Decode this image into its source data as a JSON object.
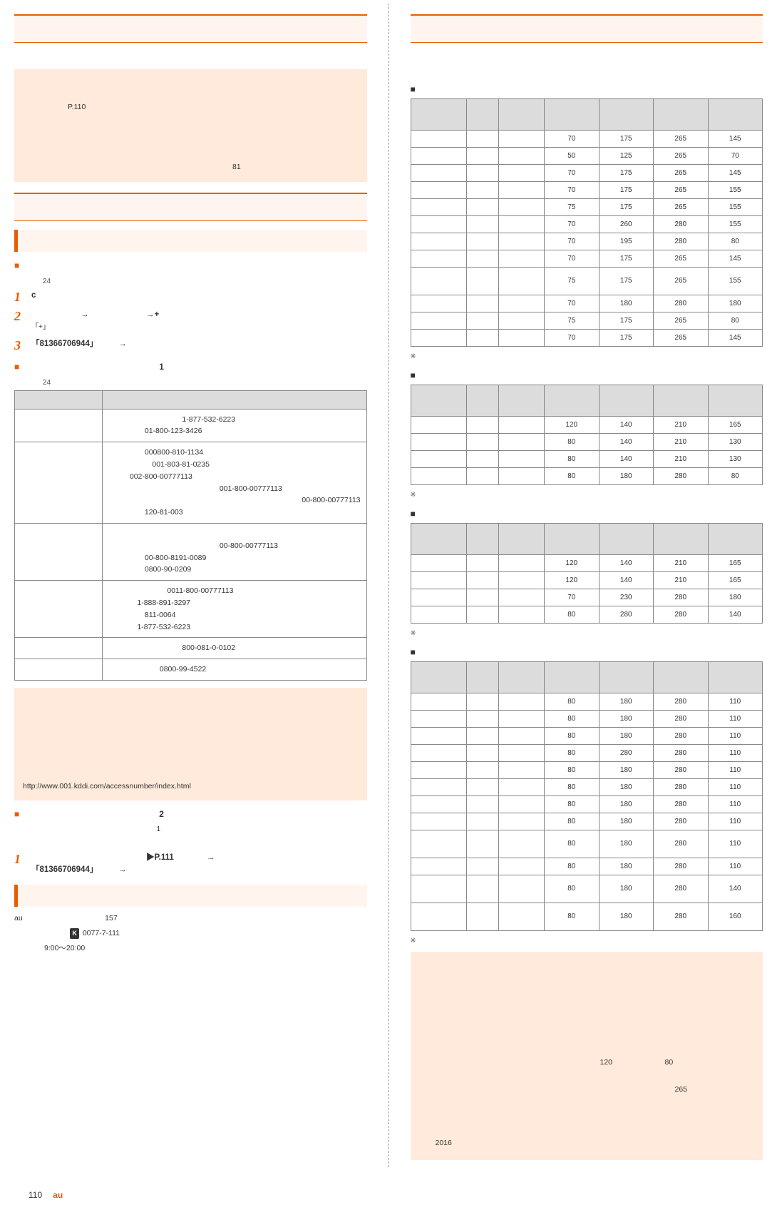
{
  "left": {
    "sec1": {
      "title": "　　　　　　　　　　",
      "desc": "　　　　　　　　　　　　　　　　　　　　　　　　　　　　　　　　　",
      "box": "　　　　　　　　　　　　　　　　　　　　　　　　　　　　　　　　　　　　　\n　　　　　　　　　　　　　　　　　　　　　　\n　　　　　　P.110　　　　　　　　　\n\n　　　　　　　　　　　　　　　　　　　　　　　　　　　　　　　　　　　　　\n　　　　　　　　　　　　　　　　　　　　　　　　　　　　\n　　　　　　　　　　　　　　　　　　　　　　　　　　　　　　　　　　　　　\n　　　　　　　　　　　　　　　　　　　　　　　　　　　　81　　　　　　　"
    },
    "sec2": {
      "title": "　　　　　　　　",
      "sub1": "　　　　　　　　　　　　",
      "h1": "　　　　　　　　　　　　　　　　　　　　　　　",
      "h1note": "　　　　24　　",
      "step1c": "c",
      "step2": "　　　　　　→　　　　　　　→+　　　",
      "step2note": "「+」　　　　　　　　　　　　　　　　　　　　　　　　　　　　　　　　　　　　",
      "step3": "「81366706944」　　　→　　　",
      "h2": "　　　　　　　　　　　　　　　　1　　　　　　　　　　　",
      "h2note": "　　　　24　　",
      "tbl1": {
        "head": [
          "　　　　　",
          "　　　　　　　　　　"
        ],
        "rows": [
          [
            "　　　　　　",
            "　　　　　　　　　　1-877-532-6223\n　　　　　01-800-123-3426"
          ],
          [
            "　　　",
            "　　　　　000800-810-1134\n　　　　　　001-803-81-0235\n　　　002-800-00777113\n　　　　　　　　　　　　　　　001-800-00777113\n　　　　　　　　　　　　　　　　　　　　　　　　　　00-800-00777113\n　　　　　120-81-003"
          ],
          [
            "　　　　　",
            "　　　　　　　　　　　　　　　　　　　　　　　　　　\n　　　　　　　　　　　　　　　00-800-00777113\n　　　　　00-800-8191-0089\n　　　　　0800-90-0209"
          ],
          [
            "　　　　　",
            "　　　　　　　　0011-800-00777113\n　　　　1-888-891-3297\n　　　　　811-0064\n　　　　1-877-532-6223"
          ],
          [
            "　　",
            "　　　　　　　　　　800-081-0-0102"
          ],
          [
            "　　　　",
            "　　　　　　　0800-99-4522"
          ]
        ]
      },
      "box2": "　　　　　　　　　　　　　　　　　　　　　　　　　　　　　　　　　　　　　\n　　　　　　　　　　　　　　　　　　　　　　　　　　　　　　　　　　　　　\n　　　　　　　\n　　　　　　　　　　　　　　　　　　　　　　　　　　　　　　　　　　　　　\n　　　　　　　　　　　　　　　　　　　　\n　　　　　　　　　　　　　　　　　　　　　　　　　　　　　　　　　　　　　\n\nhttp://www.001.kddi.com/accessnumber/index.html",
      "h3": "　　　　　　　　　　　　　　　　2　　　　　　　　",
      "h3note": "　　　　　　　　　　　　　　　　　　　1　　　　　　　　　　　　　　　　　　　　　\n　　　　　　　　",
      "step_b1": "　　　　　　　　　　　　　　▶P.111　　　　→\n「81366706944」　　　→　　",
      "sub2": "　　　　　　　　　",
      "ptxt1": "au　　　　　　　　　　　157　　　　　　　",
      "ptxt2_pre": "　　　　　　　",
      "ptxt2_num": "0077-7-111",
      "ptxt2_suf": "　　　　　　　",
      "ptxt3": "　　　　9:00〜20:00　　　　　"
    }
  },
  "right": {
    "sec_title": "　　　　　　　　　　　　　　　　　",
    "desc": "　　　　　　　　　　　　　　　　　　　　　　　　　　　　　　　　　　　　　　　\n　　　　　　　　　　　　　　　　　　　　　　",
    "rate_head": [
      "　　　　　",
      "　　　　",
      "　　　　\n　　　　",
      "　　　　\n　　　",
      "　　　　\n　　\n　　　",
      "　　　　\n　　　　\n　　　",
      "　　　　\n　　　　\n　　"
    ],
    "t1": {
      "title": "　　　",
      "rows": [
        [
          "　　",
          "　",
          "　",
          "70",
          "175",
          "265",
          "145"
        ],
        [
          "　　",
          "　",
          "　",
          "50",
          "125",
          "265",
          "70"
        ],
        [
          "　　",
          "　",
          "　",
          "70",
          "175",
          "265",
          "145"
        ],
        [
          "　　",
          "　",
          "　",
          "70",
          "175",
          "265",
          "155"
        ],
        [
          "　　　　",
          "　",
          "　",
          "75",
          "175",
          "265",
          "155"
        ],
        [
          "　　　　",
          "　",
          "　",
          "70",
          "260",
          "280",
          "155"
        ],
        [
          "　　　　",
          "　",
          "　",
          "70",
          "195",
          "280",
          "80"
        ],
        [
          "　　",
          "　",
          "　",
          "70",
          "175",
          "265",
          "145"
        ],
        [
          "　　　\n　　　　",
          "　",
          "　",
          "75",
          "175",
          "265",
          "155"
        ],
        [
          "　　",
          "　",
          "　",
          "70",
          "180",
          "280",
          "180"
        ],
        [
          "　　　　",
          "　",
          "　",
          "75",
          "175",
          "265",
          "80"
        ],
        [
          "　　",
          "　",
          "　",
          "70",
          "175",
          "265",
          "145"
        ]
      ],
      "note": "※　　　　　　　　　　　　　　　"
    },
    "t2": {
      "title": "　　　　　",
      "rows": [
        [
          "　　　",
          "　",
          "　",
          "120",
          "140",
          "210",
          "165"
        ],
        [
          "　　",
          "　",
          "　",
          "80",
          "140",
          "210",
          "130"
        ],
        [
          "　　　　",
          "　",
          "　",
          "80",
          "140",
          "210",
          "130"
        ],
        [
          "　　　　",
          "　",
          "　",
          "80",
          "180",
          "280",
          "80"
        ]
      ],
      "note": "※　　　　　　　　　　　　　　　"
    },
    "t3": {
      "title": "　　　　　　",
      "rows": [
        [
          "　　　　",
          "　",
          "　",
          "120",
          "140",
          "210",
          "165"
        ],
        [
          "　　　　",
          "　",
          "　",
          "120",
          "140",
          "210",
          "165"
        ],
        [
          "　　　",
          "　",
          "　",
          "70",
          "230",
          "280",
          "180"
        ],
        [
          "　　",
          "　",
          "　",
          "80",
          "280",
          "280",
          "140"
        ]
      ],
      "note": "※　　　　　　　　　　　　　　　"
    },
    "t4": {
      "title": "　　　　　　　　　　　",
      "rows": [
        [
          "　　　　",
          "　",
          "　",
          "80",
          "180",
          "280",
          "110"
        ],
        [
          "　　",
          "　",
          "　",
          "80",
          "180",
          "280",
          "110"
        ],
        [
          "　　　　",
          "　",
          "　",
          "80",
          "180",
          "280",
          "110"
        ],
        [
          "　　　　",
          "　",
          "　",
          "80",
          "280",
          "280",
          "110"
        ],
        [
          "　　　　",
          "　",
          "　",
          "80",
          "180",
          "280",
          "110"
        ],
        [
          "　　　　",
          "　",
          "　",
          "80",
          "180",
          "280",
          "110"
        ],
        [
          "　　　",
          "　",
          "　",
          "80",
          "180",
          "280",
          "110"
        ],
        [
          "　　　",
          "　",
          "　",
          "80",
          "180",
          "280",
          "110"
        ],
        [
          "　　　\n　　　",
          "　",
          "　",
          "80",
          "180",
          "280",
          "110"
        ],
        [
          "　　　　",
          "　",
          "　",
          "80",
          "180",
          "280",
          "110"
        ],
        [
          "　　　　\n　　　　",
          "　",
          "　",
          "80",
          "180",
          "280",
          "140"
        ],
        [
          "　　　　\n　",
          "　",
          "　",
          "80",
          "180",
          "280",
          "160"
        ]
      ],
      "note": "※　　　　　　　　　　　　　　　"
    },
    "box": "　　　　　　　　　　　　　　　　　　　　　　　　　　　　　　　　　　　　　　　\n　　　　　　　\n　　　　　　　　　　　　　　　　　　　　　　　\n　　　　　　　　　　　　　　　　　　　　　　　　　　　　　　　　　　　　　　　\n　　　　　　　　　　　　　　　　　　　　　　　　　　　　　　　　　　　　\n　　　　　　　　　　　　　　　　　　　　　　　\n\n　　　　　　　　　　　　　　　　　　　　　　　　120　　　　　　　80　　　　\n　　　　　　　　\n　　　　　　　　　　　　　　　　　　　　　　　　　　　　　　　　　　265　\n\n　　　　　　　　　　　　　　　　　　　　　　　　　　　　　　　　　　　　　　　\n　　　　　　　　　　　　　\n　　2016　　　　　　　　　　"
  },
  "footer": {
    "page": "110",
    "text": "au　　　　　　　　　　　　　　　　　"
  }
}
